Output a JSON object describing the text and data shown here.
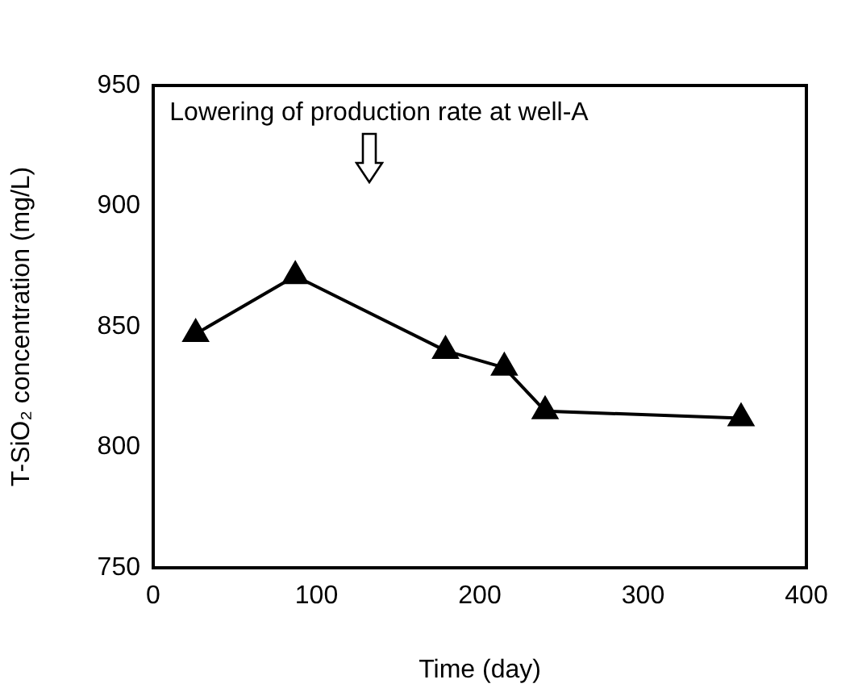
{
  "chart_data": {
    "type": "line",
    "xlabel": "Time (day)",
    "ylabel": "T-SiO₂ concentration (mg/L)",
    "x": [
      26,
      87,
      179,
      215,
      240,
      360
    ],
    "series": [
      {
        "color": "#000000",
        "values": [
          847,
          871,
          840,
          833,
          815,
          812
        ]
      }
    ],
    "xlim": [
      0,
      400
    ],
    "xticks": [
      0,
      100,
      200,
      300,
      400
    ],
    "ylim": [
      750,
      950
    ],
    "yticks": [
      750,
      800,
      850,
      900,
      950
    ],
    "grid": false,
    "legend": false,
    "marker": "triangle",
    "line_style": "solid",
    "annotations": [
      "Lowering of production rate at well-A"
    ]
  }
}
